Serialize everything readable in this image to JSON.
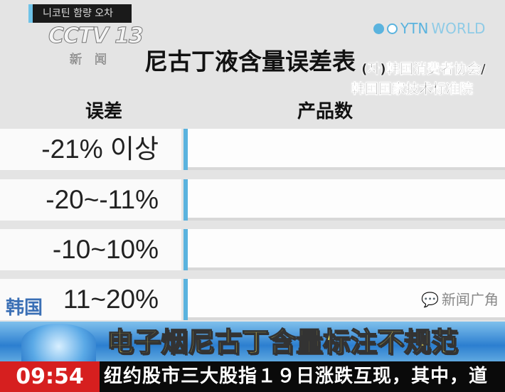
{
  "channel": {
    "korean_bar": "니코틴 함량 오차",
    "logo": "CCTV 13",
    "news": "新闻",
    "partner": {
      "ytn": "YTN",
      "world": "WORLD"
    }
  },
  "chart": {
    "title": "尼古丁液含量误差表",
    "source_line1": "(자)韩国消费者协会/",
    "source_line2": "韩国国家技术标准院",
    "col_error": "误差",
    "col_count": "产品数",
    "rows": [
      {
        "label": "-21% 이상"
      },
      {
        "label": "-20~-11%"
      },
      {
        "label": "-10~10%"
      },
      {
        "label": "11~20%"
      }
    ]
  },
  "lower_third": {
    "region": "韩国",
    "headline": "电子烟尼古丁含量标注不规范",
    "time": "09:54",
    "ticker": "纽约股市三大股指１９日涨跌互现，其中，道"
  },
  "watermark": {
    "icon": "wechat-icon",
    "text": "新闻广角"
  },
  "colors": {
    "accent_blue": "#5ab3de",
    "headline_yellow": "#f5e85a",
    "time_red": "#d61f1f"
  }
}
